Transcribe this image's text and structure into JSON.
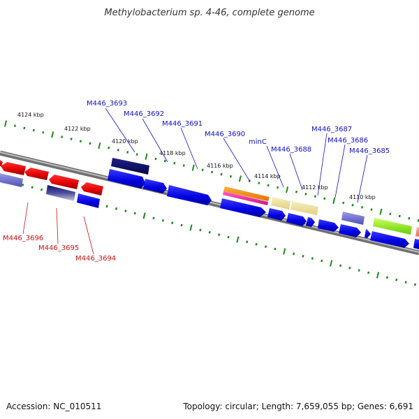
{
  "title": "Methylobacterium sp. 4-46, complete genome",
  "footer": {
    "accession": "Accession: NC_010511",
    "topology": "Topology: circular; Length: 7,659,055 bp; Genes: 6,691"
  },
  "ticks": [
    {
      "label": "4124 kbp"
    },
    {
      "label": "4122 kbp"
    },
    {
      "label": "4120 kbp"
    },
    {
      "label": "4118 kbp"
    },
    {
      "label": "4116 kbp"
    },
    {
      "label": "4114 kbp"
    },
    {
      "label": "4112 kbp"
    },
    {
      "label": "4110 kbp"
    }
  ],
  "gene_labels": [
    {
      "text": "M446_3693",
      "color": "#1010c8"
    },
    {
      "text": "M446_3692",
      "color": "#1010c8"
    },
    {
      "text": "M446_3691",
      "color": "#1010c8"
    },
    {
      "text": "M446_3690",
      "color": "#1010c8"
    },
    {
      "text": "minC",
      "color": "#1010c8"
    },
    {
      "text": "M446_3688",
      "color": "#1010c8"
    },
    {
      "text": "M446_3687",
      "color": "#1010c8"
    },
    {
      "text": "M446_3686",
      "color": "#1010c8"
    },
    {
      "text": "M446_3685",
      "color": "#1010c8"
    },
    {
      "text": "M446_3696",
      "color": "#d01010"
    },
    {
      "text": "M446_3695",
      "color": "#d01010"
    },
    {
      "text": "M446_3694",
      "color": "#d01010"
    }
  ],
  "colors": {
    "forward_cds": "#0a0af0",
    "reverse_cds": "#e00000",
    "backbone": "#8a8a8a",
    "tick": "#1a8a1a"
  }
}
